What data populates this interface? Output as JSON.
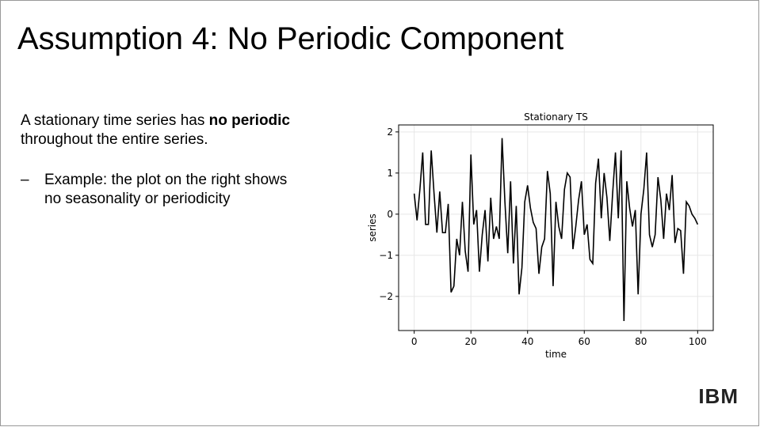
{
  "slide": {
    "title": "Assumption 4: No Periodic Component",
    "paragraph": {
      "lead": "A stationary time series has ",
      "bold": "no periodic",
      "rest": "throughout the entire series."
    },
    "bullet": {
      "marker": "–",
      "lines": [
        "Example: the plot on the right shows",
        "no seasonality or periodicity"
      ]
    },
    "logo": "IBM"
  },
  "chart_data": {
    "type": "line",
    "title": "Stationary TS",
    "x_label": "time",
    "y_label": "series",
    "color": "#000000",
    "grid": true,
    "x": [
      0,
      1,
      2,
      3,
      4,
      5,
      6,
      7,
      8,
      9,
      10,
      11,
      12,
      13,
      14,
      15,
      16,
      17,
      18,
      19,
      20,
      21,
      22,
      23,
      24,
      25,
      26,
      27,
      28,
      29,
      30,
      31,
      32,
      33,
      34,
      35,
      36,
      37,
      38,
      39,
      40,
      41,
      42,
      43,
      44,
      45,
      46,
      47,
      48,
      49,
      50,
      51,
      52,
      53,
      54,
      55,
      56,
      57,
      58,
      59,
      60,
      61,
      62,
      63,
      64,
      65,
      66,
      67,
      68,
      69,
      70,
      71,
      72,
      73,
      74,
      75,
      76,
      77,
      78,
      79,
      80,
      81,
      82,
      83,
      84,
      85,
      86,
      87,
      88,
      89,
      90,
      91,
      92,
      93,
      94,
      95,
      96,
      97,
      98,
      99,
      100
    ],
    "values": [
      0.5,
      -0.15,
      0.6,
      1.5,
      -0.25,
      -0.25,
      1.55,
      0.5,
      -0.45,
      0.55,
      -0.45,
      -0.45,
      0.25,
      -1.9,
      -1.75,
      -0.6,
      -1.0,
      0.3,
      -0.9,
      -1.4,
      1.45,
      -0.25,
      0.1,
      -1.4,
      -0.5,
      0.1,
      -1.15,
      0.4,
      -0.6,
      -0.3,
      -0.6,
      1.85,
      0.3,
      -0.95,
      0.8,
      -1.2,
      0.2,
      -1.95,
      -1.3,
      0.3,
      0.7,
      0.15,
      -0.2,
      -0.35,
      -1.45,
      -0.8,
      -0.6,
      1.05,
      0.5,
      -1.75,
      0.3,
      -0.3,
      -0.6,
      0.6,
      1.0,
      0.9,
      -0.85,
      -0.3,
      0.35,
      0.8,
      -0.5,
      -0.25,
      -1.1,
      -1.2,
      0.75,
      1.35,
      -0.1,
      1.0,
      0.4,
      -0.65,
      0.5,
      1.5,
      -0.1,
      1.55,
      -2.6,
      0.8,
      0.15,
      -0.3,
      0.1,
      -1.95,
      0.0,
      0.6,
      1.5,
      -0.5,
      -0.8,
      -0.5,
      0.9,
      0.35,
      -0.6,
      0.5,
      0.1,
      0.95,
      -0.7,
      -0.35,
      -0.4,
      -1.45,
      0.3,
      0.2,
      0.0,
      -0.1,
      -0.25
    ],
    "xlim": [
      -5.5,
      105.5
    ],
    "ylim": [
      -2.83,
      2.17
    ],
    "xticks": [
      0,
      20,
      40,
      60,
      80,
      100
    ],
    "yticks": [
      {
        "value": -2,
        "label": "−2"
      },
      {
        "value": -1,
        "label": "−1"
      },
      0,
      1,
      2
    ]
  }
}
